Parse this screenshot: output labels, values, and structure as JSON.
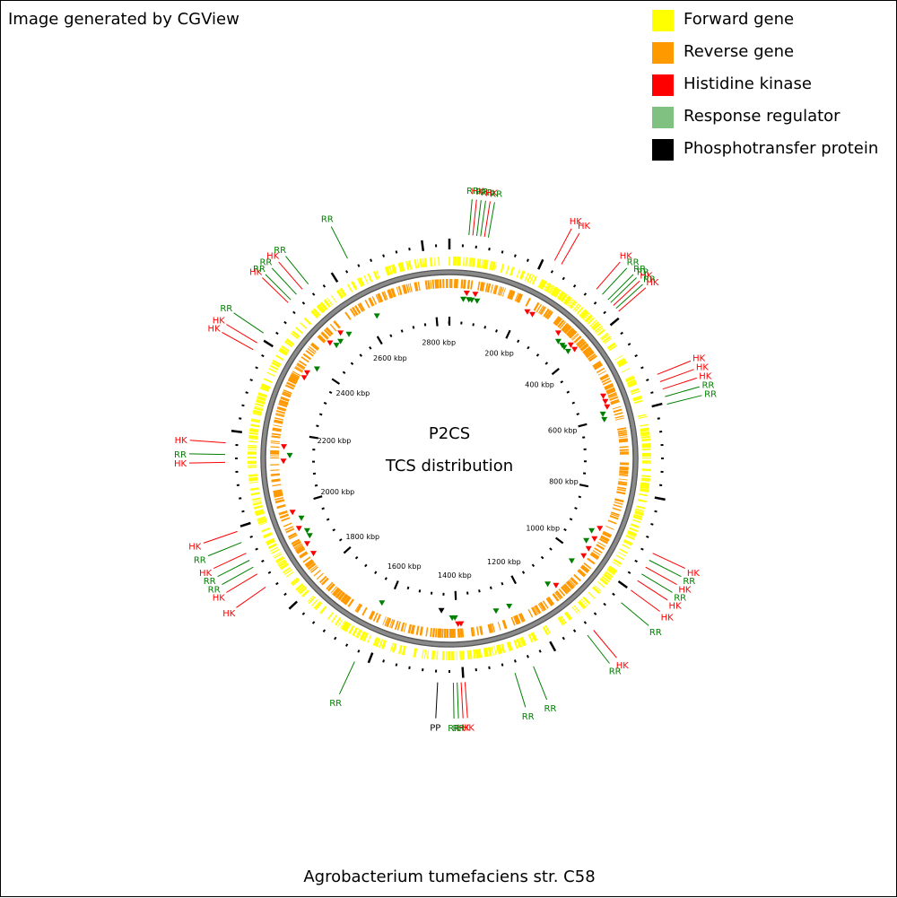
{
  "credit": "Image generated by CGView",
  "footer_title": "Agrobacterium tumefaciens str. C58",
  "center_title": "P2CS",
  "center_subtitle": "TCS distribution",
  "legend": [
    {
      "label": "Forward gene",
      "color": "#ffff00"
    },
    {
      "label": "Reverse gene",
      "color": "#ff9900"
    },
    {
      "label": "Histidine kinase",
      "color": "#ff0000"
    },
    {
      "label": "Response regulator",
      "color": "#80c080"
    },
    {
      "label": "Phosphotransfer protein",
      "color": "#000000"
    }
  ],
  "colors": {
    "forward": "#ffff00",
    "reverse": "#ff9900",
    "backbone": "#808080",
    "hk": "#ff0000",
    "rr": "#008000",
    "pp": "#000000",
    "hk_line": "#ff0000",
    "rr_line": "#008000"
  },
  "scale_labels": [
    {
      "kbp": 200,
      "text": "200 kbp"
    },
    {
      "kbp": 400,
      "text": "400 kbp"
    },
    {
      "kbp": 600,
      "text": "600 kbp"
    },
    {
      "kbp": 800,
      "text": "800 kbp"
    },
    {
      "kbp": 1000,
      "text": "1000 kbp"
    },
    {
      "kbp": 1200,
      "text": "1200 kbp"
    },
    {
      "kbp": 1400,
      "text": "1400 kbp"
    },
    {
      "kbp": 1600,
      "text": "1600 kbp"
    },
    {
      "kbp": 1800,
      "text": "1800 kbp"
    },
    {
      "kbp": 2000,
      "text": "2000 kbp"
    },
    {
      "kbp": 2200,
      "text": "2200 kbp"
    },
    {
      "kbp": 2400,
      "text": "2400 kbp"
    },
    {
      "kbp": 2600,
      "text": "2600 kbp"
    },
    {
      "kbp": 2800,
      "text": "2800 kbp"
    }
  ],
  "features": [
    {
      "type": "RR",
      "deg": 5
    },
    {
      "type": "HK",
      "deg": 6
    },
    {
      "type": "RR",
      "deg": 7
    },
    {
      "type": "RR",
      "deg": 8
    },
    {
      "type": "HK",
      "deg": 9
    },
    {
      "type": "RR",
      "deg": 10
    },
    {
      "type": "HK",
      "deg": 28
    },
    {
      "type": "HK",
      "deg": 30
    },
    {
      "type": "HK",
      "deg": 41
    },
    {
      "type": "RR",
      "deg": 43
    },
    {
      "type": "RR",
      "deg": 45
    },
    {
      "type": "RR",
      "deg": 46
    },
    {
      "type": "HK",
      "deg": 47
    },
    {
      "type": "RR",
      "deg": 48
    },
    {
      "type": "HK",
      "deg": 49
    },
    {
      "type": "HK",
      "deg": 68
    },
    {
      "type": "HK",
      "deg": 70
    },
    {
      "type": "HK",
      "deg": 72
    },
    {
      "type": "RR",
      "deg": 74
    },
    {
      "type": "RR",
      "deg": 76
    },
    {
      "type": "HK",
      "deg": 115
    },
    {
      "type": "RR",
      "deg": 117
    },
    {
      "type": "HK",
      "deg": 119
    },
    {
      "type": "RR",
      "deg": 121
    },
    {
      "type": "HK",
      "deg": 123
    },
    {
      "type": "HK",
      "deg": 126
    },
    {
      "type": "RR",
      "deg": 130
    },
    {
      "type": "HK",
      "deg": 140
    },
    {
      "type": "RR",
      "deg": 142
    },
    {
      "type": "RR",
      "deg": 158
    },
    {
      "type": "RR",
      "deg": 163
    },
    {
      "type": "HK",
      "deg": 176
    },
    {
      "type": "HK",
      "deg": 177
    },
    {
      "type": "RR",
      "deg": 178
    },
    {
      "type": "RR",
      "deg": 179
    },
    {
      "type": "PP",
      "deg": 183
    },
    {
      "type": "RR",
      "deg": 205
    },
    {
      "type": "HK",
      "deg": 235
    },
    {
      "type": "HK",
      "deg": 239
    },
    {
      "type": "RR",
      "deg": 241
    },
    {
      "type": "RR",
      "deg": 243
    },
    {
      "type": "HK",
      "deg": 245
    },
    {
      "type": "RR",
      "deg": 248
    },
    {
      "type": "HK",
      "deg": 251
    },
    {
      "type": "HK",
      "deg": 269
    },
    {
      "type": "RR",
      "deg": 271
    },
    {
      "type": "HK",
      "deg": 274
    },
    {
      "type": "HK",
      "deg": 299
    },
    {
      "type": "HK",
      "deg": 301
    },
    {
      "type": "RR",
      "deg": 304
    },
    {
      "type": "HK",
      "deg": 314
    },
    {
      "type": "RR",
      "deg": 315
    },
    {
      "type": "RR",
      "deg": 317
    },
    {
      "type": "HK",
      "deg": 319
    },
    {
      "type": "RR",
      "deg": 321
    },
    {
      "type": "RR",
      "deg": 333
    }
  ]
}
